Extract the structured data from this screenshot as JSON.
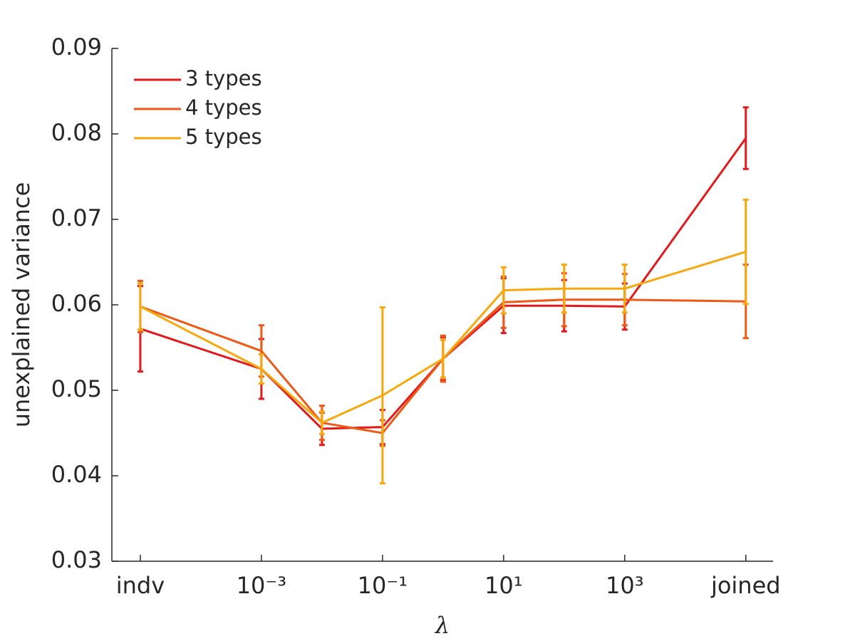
{
  "chart_data": {
    "type": "line",
    "x_label": "λ",
    "y_label": "unexplained variance",
    "x": [
      -5,
      -3,
      -2,
      -1,
      0,
      1,
      2,
      3,
      5
    ],
    "xlim": [
      -5.47,
      5.45
    ],
    "xticks": [
      {
        "value": -5,
        "label": "indv"
      },
      {
        "value": -3,
        "label": "10⁻³"
      },
      {
        "value": -1,
        "label": "10⁻¹"
      },
      {
        "value": 1,
        "label": "10¹"
      },
      {
        "value": 3,
        "label": "10³"
      },
      {
        "value": 5,
        "label": "joined"
      }
    ],
    "ylim": [
      0.03,
      0.09
    ],
    "yticks": [
      0.03,
      0.04,
      0.05,
      0.06,
      0.07,
      0.08,
      0.09
    ],
    "legend": "upper left",
    "series": [
      {
        "name": "3 types",
        "color": "#e3191c",
        "values": [
          0.0572,
          0.0525,
          0.0455,
          0.0457,
          0.0537,
          0.0599,
          0.0599,
          0.0598,
          0.0795
        ],
        "errors": [
          0.005,
          0.0035,
          0.0019,
          0.002,
          0.0025,
          0.0032,
          0.003,
          0.0027,
          0.0036
        ]
      },
      {
        "name": "4 types",
        "color": "#ee5a16",
        "values": [
          0.0598,
          0.0546,
          0.0462,
          0.045,
          0.0537,
          0.0603,
          0.0606,
          0.0606,
          0.0604
        ],
        "errors": [
          0.003,
          0.003,
          0.002,
          0.0015,
          0.0027,
          0.003,
          0.0031,
          0.003,
          0.0043
        ]
      },
      {
        "name": "5 types",
        "color": "#f7a80d",
        "values": [
          0.0598,
          0.0525,
          0.0462,
          0.0494,
          0.0537,
          0.0617,
          0.0619,
          0.0619,
          0.0662
        ],
        "errors": [
          0.0027,
          0.0017,
          0.0013,
          0.0103,
          0.0022,
          0.0027,
          0.0028,
          0.0028,
          0.0061
        ]
      }
    ]
  }
}
